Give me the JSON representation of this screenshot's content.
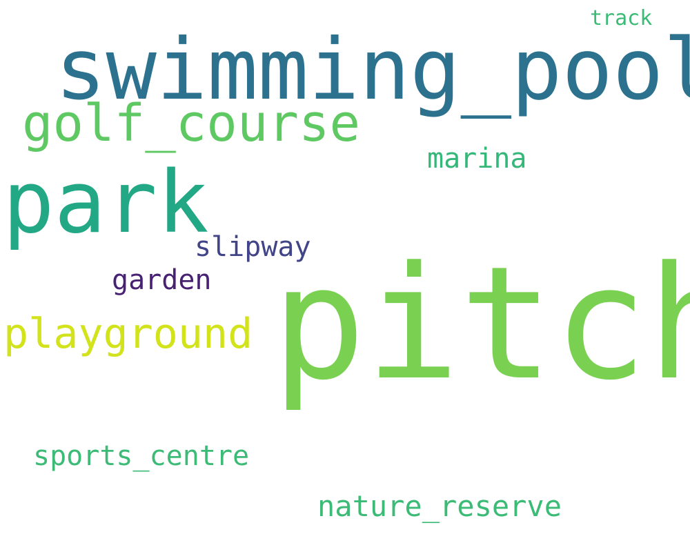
{
  "words": [
    {
      "text": "pitch",
      "color": "#7ad151"
    },
    {
      "text": "swimming_pool",
      "color": "#2c728e"
    },
    {
      "text": "park",
      "color": "#22a884"
    },
    {
      "text": "golf_course",
      "color": "#5ec962"
    },
    {
      "text": "playground",
      "color": "#d2e21b"
    },
    {
      "text": "slipway",
      "color": "#414487"
    },
    {
      "text": "garden",
      "color": "#482173"
    },
    {
      "text": "marina",
      "color": "#35b779"
    },
    {
      "text": "sports_centre",
      "color": "#3bbb75"
    },
    {
      "text": "nature_reserve",
      "color": "#3bbb75"
    },
    {
      "text": "track",
      "color": "#3bbb75"
    }
  ]
}
